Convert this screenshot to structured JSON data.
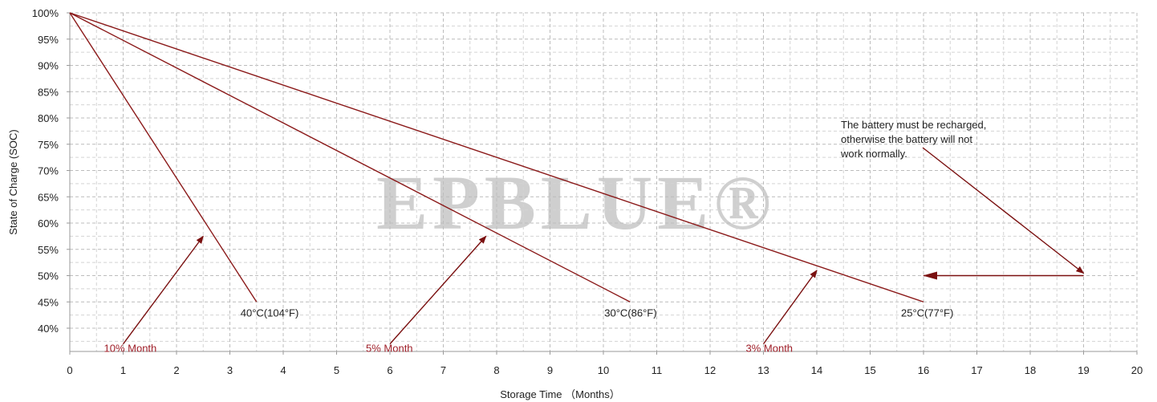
{
  "chart_data": {
    "type": "line",
    "title": "",
    "xlabel": "Storage Time （Months）",
    "ylabel": "State of Charge (SOC)",
    "xlim": [
      0,
      20
    ],
    "ylim": [
      35,
      100
    ],
    "x_ticks": [
      "0",
      "1",
      "2",
      "3",
      "4",
      "5",
      "6",
      "7",
      "8",
      "9",
      "10",
      "11",
      "12",
      "13",
      "14",
      "15",
      "16",
      "17",
      "18",
      "19",
      "20"
    ],
    "y_ticks": [
      "100%",
      "95%",
      "90%",
      "85%",
      "80%",
      "75%",
      "70%",
      "65%",
      "60%",
      "55%",
      "50%",
      "45%",
      "40%"
    ],
    "grid": true,
    "series": [
      {
        "name": "40°C(104°F)",
        "x": [
          0,
          3.5
        ],
        "y": [
          100,
          45
        ],
        "color": "#8b1a1a"
      },
      {
        "name": "30°C(86°F)",
        "x": [
          0,
          10.5
        ],
        "y": [
          100,
          45
        ],
        "color": "#8b1a1a"
      },
      {
        "name": "25°C(77°F)",
        "x": [
          0,
          16
        ],
        "y": [
          100,
          45
        ],
        "color": "#8b1a1a"
      }
    ],
    "rate_annotations": [
      {
        "text": "10% Month",
        "from": [
          1,
          37
        ],
        "to": [
          2.5,
          57.5
        ]
      },
      {
        "text": "5% Month",
        "from": [
          6,
          37
        ],
        "to": [
          7.8,
          57.5
        ]
      },
      {
        "text": "3% Month",
        "from": [
          13,
          37
        ],
        "to": [
          14,
          51
        ]
      }
    ],
    "recharge_note": {
      "lines": [
        "The battery must be recharged,",
        "otherwise the battery will not",
        "work normally."
      ],
      "arrow_to": [
        19,
        50
      ],
      "horizontal_arrow": {
        "from": [
          19,
          50
        ],
        "to": [
          16,
          50
        ]
      }
    },
    "watermark": "EPBLUE®"
  }
}
